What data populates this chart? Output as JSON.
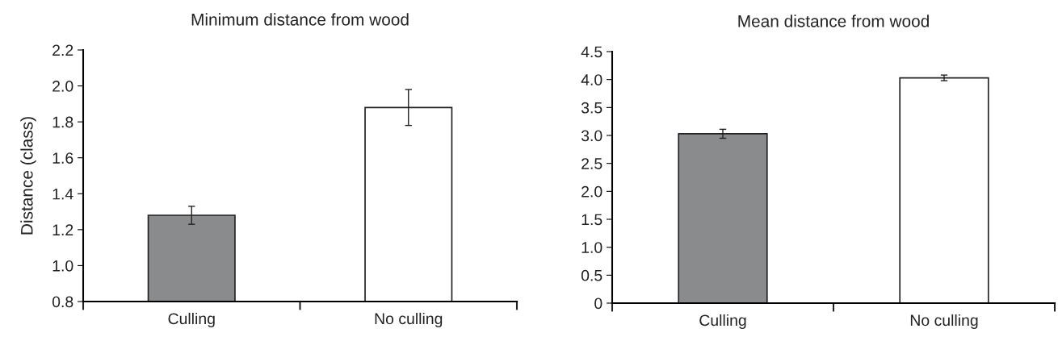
{
  "chart_data": [
    {
      "type": "bar",
      "title": "Minimum distance from wood",
      "ylabel": "Distance (class)",
      "categories": [
        "Culling",
        "No culling"
      ],
      "values": [
        1.28,
        1.88
      ],
      "errors": [
        0.05,
        0.1
      ],
      "colors": [
        "#8a8b8d",
        "#ffffff"
      ],
      "ylim": [
        0.8,
        2.2
      ],
      "yticks": [
        {
          "value": 0.8,
          "label": "0.8"
        },
        {
          "value": 1.0,
          "label": "1.0"
        },
        {
          "value": 1.2,
          "label": "1.2"
        },
        {
          "value": 1.4,
          "label": "1.4"
        },
        {
          "value": 1.6,
          "label": "1.6"
        },
        {
          "value": 1.8,
          "label": "1.8"
        },
        {
          "value": 2.0,
          "label": "2.0"
        },
        {
          "value": 2.2,
          "label": "2.2"
        }
      ],
      "grid": false,
      "legend": false
    },
    {
      "type": "bar",
      "title": "Mean distance from wood",
      "categories": [
        "Culling",
        "No culling"
      ],
      "values": [
        3.03,
        4.03
      ],
      "errors": [
        0.08,
        0.05
      ],
      "colors": [
        "#8a8b8d",
        "#ffffff"
      ],
      "ylim": [
        0,
        4.5
      ],
      "yticks": [
        0,
        {
          "value": 0.5,
          "label": "0.5"
        },
        {
          "value": 1.0,
          "label": "1.0"
        },
        {
          "value": 1.5,
          "label": "1.5"
        },
        {
          "value": 2.0,
          "label": "2.0"
        },
        {
          "value": 2.5,
          "label": "2.5"
        },
        {
          "value": 3.0,
          "label": "3.0"
        },
        {
          "value": 3.5,
          "label": "3.5"
        },
        {
          "value": 4.0,
          "label": "4.0"
        },
        {
          "value": 4.5,
          "label": "4.5"
        }
      ],
      "grid": false,
      "legend": false
    }
  ]
}
